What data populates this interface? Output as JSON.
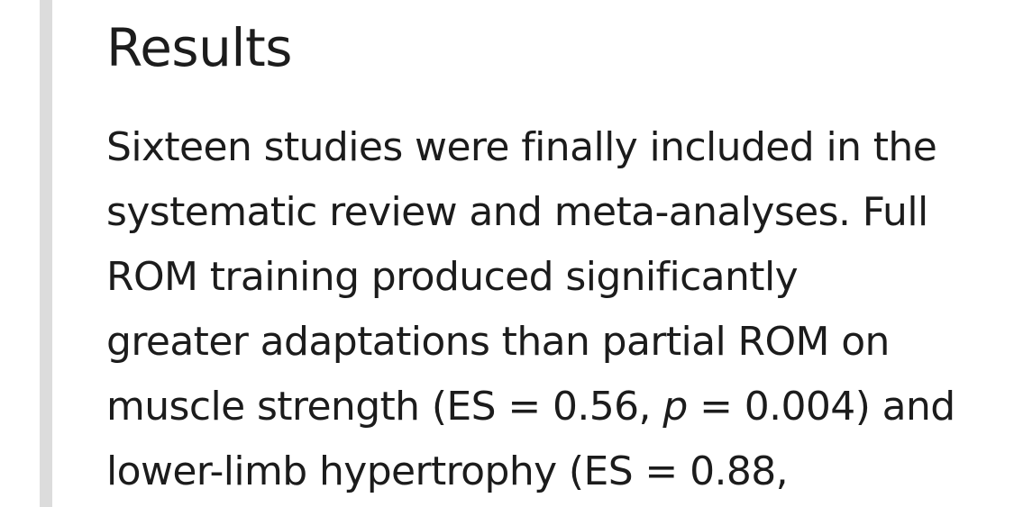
{
  "section": {
    "heading": "Results",
    "lines": {
      "l1": "Sixteen studies were finally included in the",
      "l2": "systematic review and meta-analyses. Full",
      "l3": "ROM training produced significantly",
      "l4": "greater adaptations than partial ROM on",
      "l5_before": "muscle strength (ES = 0.56, ",
      "l5_p": "p",
      "l5_after": " = 0.004) and",
      "l6": "lower-limb hypertrophy (ES = 0.88,"
    }
  }
}
